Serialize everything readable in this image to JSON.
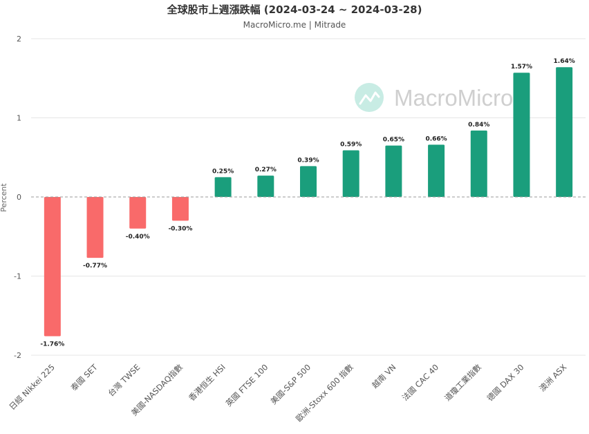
{
  "chart_data": {
    "type": "bar",
    "title": "全球股市上週漲跌幅 (2024-03-24 ~ 2024-03-28)",
    "subtitle": "MacroMicro.me | Mitrade",
    "ylabel": "Percent",
    "ylim": [
      -2,
      2
    ],
    "yticks": [
      "-2",
      "-1",
      "0",
      "1",
      "2"
    ],
    "categories": [
      "日經 Nikkei 225",
      "泰國 SET",
      "台灣 TWSE",
      "美國-NASDAQ指數",
      "香港恒生 HSI",
      "英國 FTSE 100",
      "美國-S&P 500",
      "歐洲-Stoxx 600 指數",
      "越南 VN",
      "法國 CAC 40",
      "道瓊工業指數",
      "德國 DAX 30",
      "澳洲 ASX"
    ],
    "values": [
      -1.76,
      -0.77,
      -0.4,
      -0.3,
      0.25,
      0.27,
      0.39,
      0.59,
      0.65,
      0.66,
      0.84,
      1.57,
      1.64
    ],
    "data_labels": [
      "-1.76%",
      "-0.77%",
      "-0.40%",
      "-0.30%",
      "0.25%",
      "0.27%",
      "0.39%",
      "0.59%",
      "0.65%",
      "0.66%",
      "0.84%",
      "1.57%",
      "1.64%"
    ],
    "colors": {
      "positive": "#1a9e7c",
      "negative": "#f96a6a"
    },
    "grid": true,
    "legend": "none"
  },
  "watermark": {
    "text": "MacroMicro",
    "icon": "macromicro-logo-icon"
  }
}
